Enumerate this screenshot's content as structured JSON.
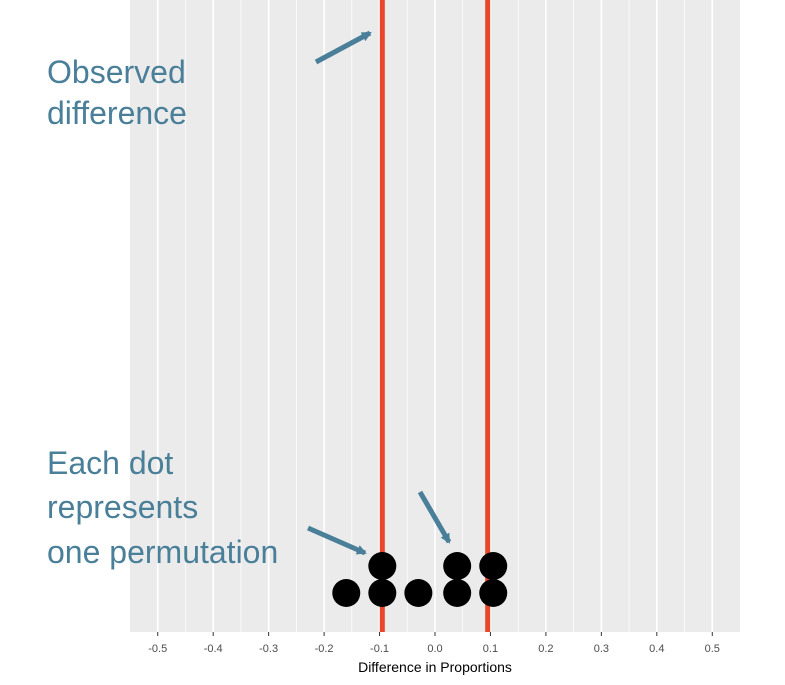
{
  "chart_data": {
    "type": "scatter",
    "subtype": "dotplot",
    "title": "",
    "xlabel": "Difference in Proportions",
    "ylabel": "",
    "xlim": [
      -0.55,
      0.55
    ],
    "x_ticks": [
      -0.5,
      -0.4,
      -0.3,
      -0.2,
      -0.1,
      0.0,
      0.1,
      0.2,
      0.3,
      0.4,
      0.5
    ],
    "x_tick_labels": [
      "-0.5",
      "-0.4",
      "-0.3",
      "-0.2",
      "-0.1",
      "0.0",
      "0.1",
      "0.2",
      "0.3",
      "0.4",
      "0.5"
    ],
    "grid": true,
    "legend": "none",
    "points": [
      {
        "x": -0.16,
        "stack": 1
      },
      {
        "x": -0.095,
        "stack": 1
      },
      {
        "x": -0.095,
        "stack": 2
      },
      {
        "x": -0.03,
        "stack": 1
      },
      {
        "x": 0.04,
        "stack": 1
      },
      {
        "x": 0.04,
        "stack": 2
      },
      {
        "x": 0.105,
        "stack": 1
      },
      {
        "x": 0.105,
        "stack": 2
      }
    ],
    "reference_lines": [
      {
        "x": -0.095,
        "color": "#e8472b"
      },
      {
        "x": 0.095,
        "color": "#e8472b"
      }
    ],
    "annotations": [
      {
        "text_lines": [
          "Observed",
          "difference"
        ]
      },
      {
        "text_lines": [
          "Each dot",
          "represents",
          "one permutation"
        ]
      }
    ],
    "colors": {
      "panel_background": "#ebebeb",
      "gridline": "#ffffff",
      "dot": "#000000",
      "reference_line": "#e8472b",
      "annotation": "#4a7f99"
    }
  }
}
